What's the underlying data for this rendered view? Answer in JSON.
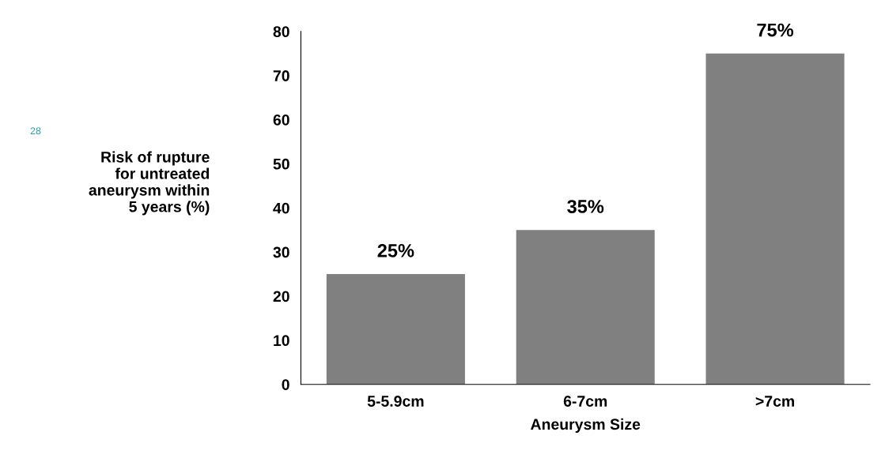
{
  "chart_data": {
    "type": "bar",
    "xlabel": "Aneurysm Size",
    "ylabel": "Risk of rupture\nfor untreated\naneurysm within\n5 years (%)",
    "categories": [
      "5-5.9cm",
      "6-7cm",
      ">7cm"
    ],
    "values": [
      25,
      35,
      75
    ],
    "value_labels": [
      "25%",
      "35%",
      "75%"
    ],
    "color": "#808080",
    "ylim": [
      0,
      80
    ],
    "yticks": [
      0,
      10,
      20,
      30,
      40,
      50,
      60,
      70,
      80
    ],
    "grid": false,
    "annotations": [
      "28"
    ]
  }
}
